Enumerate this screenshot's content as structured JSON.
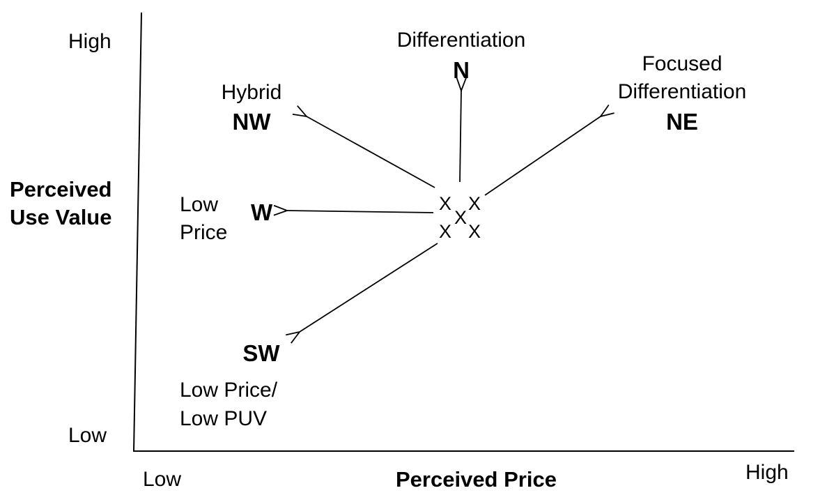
{
  "y_axis": {
    "title_line1": "Perceived",
    "title_line2": "Use Value",
    "high": "High",
    "low": "Low"
  },
  "x_axis": {
    "title": "Perceived Price",
    "low": "Low",
    "high": "High"
  },
  "origin_marks": [
    "X",
    "X",
    "X",
    "X",
    "X"
  ],
  "directions": {
    "n": {
      "name": "Differentiation",
      "code": "N"
    },
    "nw": {
      "name": "Hybrid",
      "code": "NW"
    },
    "ne": {
      "name_line1": "Focused",
      "name_line2": "Differentiation",
      "code": "NE"
    },
    "w": {
      "name_line1": "Low",
      "name_line2": "Price",
      "code": "W"
    },
    "sw": {
      "code": "SW",
      "name_line1": "Low Price/",
      "name_line2": "Low PUV"
    }
  }
}
